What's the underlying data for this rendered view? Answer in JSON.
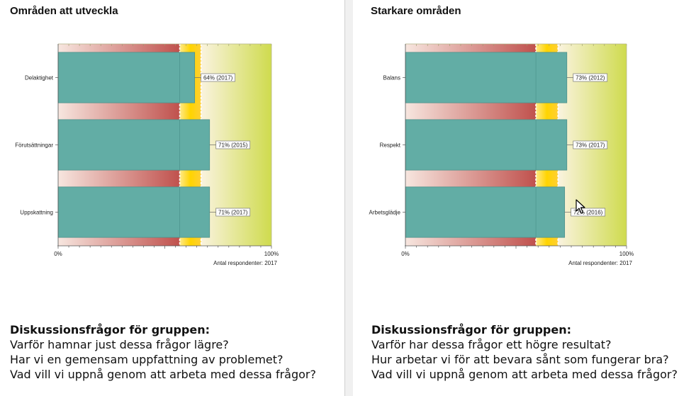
{
  "panels": [
    {
      "title": "Områden att utveckla",
      "respondent_label": "Antal respondenter: 2017",
      "discussion": {
        "title": "Diskussionsfrågor för gruppen:",
        "questions": [
          "Varför hamnar just dessa frågor lägre?",
          "Har vi en gemensam uppfattning av problemet?",
          "Vad vill vi uppnå genom att arbeta med dessa frågor?"
        ]
      }
    },
    {
      "title": "Starkare områden",
      "respondent_label": "Antal respondenter: 2017",
      "discussion": {
        "title": "Diskussionsfrågor för gruppen:",
        "questions": [
          "Varför har dessa frågor ett högre resultat?",
          "Hur arbetar vi för att bevara sånt som fungerar bra?",
          "Vad vill vi uppnå genom att arbeta med dessa frågor?"
        ]
      }
    }
  ],
  "colors": {
    "bar": "#62ada5",
    "bar_stroke": "#4e918a",
    "zone_red": "#c0514d",
    "zone_yellow": "#ffd400",
    "zone_green": "#cfdb4e"
  },
  "chart_data": [
    {
      "type": "bar",
      "orientation": "horizontal",
      "categories": [
        "Delaktighet",
        "Förutsättningar",
        "Uppskattning"
      ],
      "values": [
        64,
        71,
        71
      ],
      "data_labels": [
        "64% (2017)",
        "71% (2015)",
        "71% (2017)"
      ],
      "xlim": [
        0,
        100
      ],
      "x_tick_labels": [
        "0%",
        "100%"
      ],
      "zones": [
        {
          "name": "red",
          "from": 0,
          "to": 57
        },
        {
          "name": "yellow",
          "from": 57,
          "to": 67
        },
        {
          "name": "green",
          "from": 67,
          "to": 100
        }
      ]
    },
    {
      "type": "bar",
      "orientation": "horizontal",
      "categories": [
        "Balans",
        "Respekt",
        "Arbetsglädje"
      ],
      "values": [
        73,
        73,
        72
      ],
      "data_labels": [
        "73% (2012)",
        "73% (2017)",
        "72% (2016)"
      ],
      "xlim": [
        0,
        100
      ],
      "x_tick_labels": [
        "0%",
        "100%"
      ],
      "zones": [
        {
          "name": "red",
          "from": 0,
          "to": 59
        },
        {
          "name": "yellow",
          "from": 59,
          "to": 69
        },
        {
          "name": "green",
          "from": 69,
          "to": 100
        }
      ]
    }
  ]
}
